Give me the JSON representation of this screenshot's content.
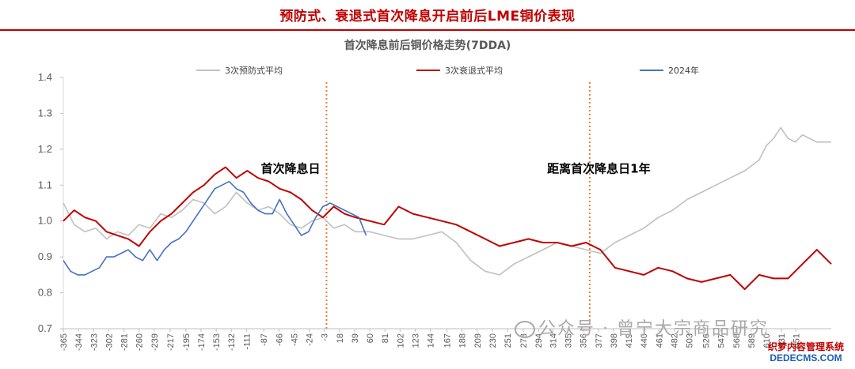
{
  "header": {
    "title": "预防式、衰退式首次降息开启前后LME铜价表现"
  },
  "watermark": {
    "text": "公众号 · 曾宁大宗商品研究"
  },
  "stamp": {
    "line1": "织梦内容管理系统",
    "line2": "DEDECMS.COM"
  },
  "chart_data": {
    "type": "line",
    "title": "首次降息前后铜价格走势(7DDA)",
    "xlabel": "",
    "ylabel": "",
    "ylim": [
      0.7,
      1.4
    ],
    "xlim": [
      -365,
      700
    ],
    "y_ticks": [
      0.7,
      0.8,
      0.9,
      1.0,
      1.1,
      1.2,
      1.3,
      1.4
    ],
    "y_tick_labels": [
      "0.7",
      "0.8",
      "0.9",
      "1.0",
      "1.1",
      "1.2",
      "1.3",
      "1.4"
    ],
    "x_tick_labels": [
      "-365",
      "-344",
      "-323",
      "-302",
      "-281",
      "-260",
      "-239",
      "-217",
      "-195",
      "-174",
      "-153",
      "-132",
      "-111",
      "-87",
      "-66",
      "-45",
      "-24",
      "-3",
      "18",
      "39",
      "60",
      "81",
      "102",
      "123",
      "144",
      "167",
      "188",
      "209",
      "230",
      "251",
      "273",
      "294",
      "314",
      "335",
      "356",
      "377",
      "398",
      "419",
      "440",
      "461",
      "482",
      "503",
      "526",
      "547",
      "568",
      "589",
      "610",
      "631",
      "651"
    ],
    "legend_position": "top",
    "grid": false,
    "vlines": [
      0,
      365
    ],
    "annotations": [
      {
        "text": "首次降息日",
        "x": -91,
        "y": 1.135
      },
      {
        "text": "距离首次降息日1年",
        "x": 306,
        "y": 1.135
      }
    ],
    "colors": {
      "preventive": "#c0c0c0",
      "recession": "#c00000",
      "y2024": "#4472c4",
      "vline": "#ed7d31"
    },
    "series": [
      {
        "name": "3次预防式平均",
        "x": [
          -365,
          -350,
          -335,
          -320,
          -305,
          -290,
          -275,
          -260,
          -245,
          -230,
          -215,
          -200,
          -185,
          -170,
          -155,
          -140,
          -125,
          -110,
          -95,
          -80,
          -65,
          -50,
          -35,
          -20,
          -5,
          10,
          25,
          40,
          60,
          80,
          100,
          120,
          140,
          160,
          180,
          200,
          220,
          240,
          260,
          280,
          300,
          320,
          340,
          360,
          380,
          400,
          420,
          440,
          460,
          480,
          500,
          520,
          540,
          560,
          580,
          600,
          610,
          620,
          630,
          640,
          650,
          660,
          680,
          700
        ],
        "y": [
          1.05,
          0.99,
          0.97,
          0.98,
          0.95,
          0.97,
          0.96,
          0.99,
          0.98,
          1.02,
          1.01,
          1.03,
          1.06,
          1.05,
          1.02,
          1.04,
          1.08,
          1.05,
          1.03,
          1.04,
          1.02,
          0.99,
          0.98,
          1.0,
          1.01,
          0.98,
          0.99,
          0.97,
          0.97,
          0.96,
          0.95,
          0.95,
          0.96,
          0.97,
          0.94,
          0.89,
          0.86,
          0.85,
          0.88,
          0.9,
          0.92,
          0.94,
          0.93,
          0.92,
          0.91,
          0.94,
          0.96,
          0.98,
          1.01,
          1.03,
          1.06,
          1.08,
          1.1,
          1.12,
          1.14,
          1.17,
          1.21,
          1.23,
          1.26,
          1.23,
          1.22,
          1.24,
          1.22,
          1.22
        ]
      },
      {
        "name": "3次衰退式平均",
        "x": [
          -365,
          -350,
          -335,
          -320,
          -305,
          -290,
          -275,
          -260,
          -245,
          -230,
          -215,
          -200,
          -185,
          -170,
          -155,
          -140,
          -125,
          -110,
          -95,
          -80,
          -65,
          -50,
          -35,
          -20,
          -5,
          10,
          25,
          40,
          60,
          80,
          100,
          120,
          140,
          160,
          180,
          200,
          220,
          240,
          260,
          280,
          300,
          320,
          340,
          360,
          380,
          400,
          420,
          440,
          460,
          480,
          500,
          520,
          540,
          560,
          580,
          600,
          620,
          640,
          660,
          680,
          700
        ],
        "y": [
          1.0,
          1.03,
          1.01,
          1.0,
          0.97,
          0.96,
          0.95,
          0.93,
          0.97,
          1.0,
          1.02,
          1.05,
          1.08,
          1.1,
          1.13,
          1.15,
          1.12,
          1.14,
          1.12,
          1.11,
          1.09,
          1.08,
          1.06,
          1.03,
          1.01,
          1.04,
          1.02,
          1.01,
          1.0,
          0.99,
          1.04,
          1.02,
          1.01,
          1.0,
          0.99,
          0.97,
          0.95,
          0.93,
          0.94,
          0.95,
          0.94,
          0.94,
          0.93,
          0.94,
          0.92,
          0.87,
          0.86,
          0.85,
          0.87,
          0.86,
          0.84,
          0.83,
          0.84,
          0.85,
          0.81,
          0.85,
          0.84,
          0.84,
          0.88,
          0.92,
          0.88
        ]
      },
      {
        "name": "2024年",
        "x": [
          -365,
          -355,
          -345,
          -335,
          -325,
          -315,
          -305,
          -295,
          -285,
          -275,
          -265,
          -255,
          -245,
          -235,
          -225,
          -215,
          -205,
          -195,
          -185,
          -175,
          -165,
          -155,
          -145,
          -135,
          -125,
          -115,
          -105,
          -95,
          -85,
          -75,
          -65,
          -55,
          -45,
          -35,
          -25,
          -15,
          -5,
          5,
          15,
          25,
          35,
          45,
          55
        ],
        "y": [
          0.89,
          0.86,
          0.85,
          0.85,
          0.86,
          0.87,
          0.9,
          0.9,
          0.91,
          0.92,
          0.9,
          0.89,
          0.92,
          0.89,
          0.92,
          0.94,
          0.95,
          0.97,
          1.0,
          1.03,
          1.06,
          1.09,
          1.1,
          1.11,
          1.09,
          1.08,
          1.05,
          1.03,
          1.02,
          1.02,
          1.06,
          1.02,
          0.99,
          0.96,
          0.97,
          1.01,
          1.04,
          1.05,
          1.04,
          1.03,
          1.02,
          1.01,
          0.96
        ]
      }
    ]
  }
}
